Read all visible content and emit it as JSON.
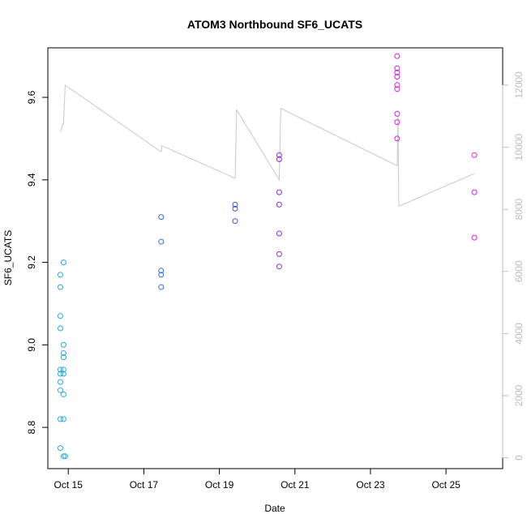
{
  "chart_data": {
    "type": "scatter",
    "title": "ATOM3 Northbound SF6_UCATS",
    "xlabel": "Date",
    "ylabel": "SF6_UCATS",
    "xlim": [
      "2016-10-14 11:00",
      "2016-10-26 12:00"
    ],
    "ylim": [
      8.7,
      9.72
    ],
    "x_ticks": [
      {
        "date": "2016-10-15",
        "label": "Oct 15"
      },
      {
        "date": "2016-10-17",
        "label": "Oct 17"
      },
      {
        "date": "2016-10-19",
        "label": "Oct 19"
      },
      {
        "date": "2016-10-21",
        "label": "Oct 21"
      },
      {
        "date": "2016-10-23",
        "label": "Oct 23"
      },
      {
        "date": "2016-10-25",
        "label": "Oct 25"
      }
    ],
    "y_ticks": [
      8.8,
      9.0,
      9.2,
      9.4,
      9.6
    ],
    "y_tick_labels": [
      "8.8",
      "9.0",
      "9.2",
      "9.4",
      "9.6"
    ],
    "y2_ticks": [
      0,
      2000,
      4000,
      6000,
      8000,
      10000,
      12000
    ],
    "y2_tick_labels": [
      "0",
      "2000",
      "4000",
      "6000",
      "8000",
      "10000",
      "12000"
    ],
    "y2lim": [
      -350,
      13200
    ],
    "grid": false,
    "points": [
      {
        "x": "2016-10-14 19:00",
        "y": 9.14,
        "color": "#1FA9F0"
      },
      {
        "x": "2016-10-14 19:00",
        "y": 9.17,
        "color": "#1FA9F0"
      },
      {
        "x": "2016-10-14 19:00",
        "y": 9.07,
        "color": "#1FA9F0"
      },
      {
        "x": "2016-10-14 19:00",
        "y": 9.04,
        "color": "#1FA9F0"
      },
      {
        "x": "2016-10-14 19:00",
        "y": 8.94,
        "color": "#1FA9F0"
      },
      {
        "x": "2016-10-14 19:00",
        "y": 8.93,
        "color": "#1FA9F0"
      },
      {
        "x": "2016-10-14 19:00",
        "y": 8.91,
        "color": "#1FA9F0"
      },
      {
        "x": "2016-10-14 19:00",
        "y": 8.89,
        "color": "#1FA9F0"
      },
      {
        "x": "2016-10-14 19:00",
        "y": 8.82,
        "color": "#1FA9F0"
      },
      {
        "x": "2016-10-14 19:00",
        "y": 8.75,
        "color": "#1FA9F0"
      },
      {
        "x": "2016-10-14 21:00",
        "y": 9.2,
        "color": "#1FA9F0"
      },
      {
        "x": "2016-10-14 21:00",
        "y": 9.0,
        "color": "#1FA9F0"
      },
      {
        "x": "2016-10-14 21:00",
        "y": 8.98,
        "color": "#1FA9F0"
      },
      {
        "x": "2016-10-14 21:00",
        "y": 8.97,
        "color": "#1FA9F0"
      },
      {
        "x": "2016-10-14 21:00",
        "y": 8.94,
        "color": "#1FA9F0"
      },
      {
        "x": "2016-10-14 21:00",
        "y": 8.93,
        "color": "#1FA9F0"
      },
      {
        "x": "2016-10-14 21:00",
        "y": 8.88,
        "color": "#1FA9F0"
      },
      {
        "x": "2016-10-14 21:00",
        "y": 8.82,
        "color": "#1FA9F0"
      },
      {
        "x": "2016-10-14 21:00",
        "y": 8.73,
        "color": "#1FA9F0"
      },
      {
        "x": "2016-10-14 22:00",
        "y": 8.73,
        "color": "#1FA9F0"
      },
      {
        "x": "2016-10-17 11:00",
        "y": 9.31,
        "color": "#2F6FE6"
      },
      {
        "x": "2016-10-17 11:00",
        "y": 9.25,
        "color": "#2F6FE6"
      },
      {
        "x": "2016-10-17 11:00",
        "y": 9.18,
        "color": "#2F6FE6"
      },
      {
        "x": "2016-10-17 11:00",
        "y": 9.17,
        "color": "#2F6FE6"
      },
      {
        "x": "2016-10-17 11:00",
        "y": 9.14,
        "color": "#2F6FE6"
      },
      {
        "x": "2016-10-19 10:00",
        "y": 9.34,
        "color": "#3B4FE0"
      },
      {
        "x": "2016-10-19 10:00",
        "y": 9.33,
        "color": "#3B4FE0"
      },
      {
        "x": "2016-10-19 10:00",
        "y": 9.3,
        "color": "#3B4FE0"
      },
      {
        "x": "2016-10-20 14:00",
        "y": 9.46,
        "color": "#8A2BE2"
      },
      {
        "x": "2016-10-20 14:00",
        "y": 9.45,
        "color": "#8A2BE2"
      },
      {
        "x": "2016-10-20 14:00",
        "y": 9.37,
        "color": "#8A2BE2"
      },
      {
        "x": "2016-10-20 14:00",
        "y": 9.34,
        "color": "#8A2BE2"
      },
      {
        "x": "2016-10-20 14:00",
        "y": 9.27,
        "color": "#8A2BE2"
      },
      {
        "x": "2016-10-20 14:00",
        "y": 9.22,
        "color": "#8A2BE2"
      },
      {
        "x": "2016-10-20 14:00",
        "y": 9.19,
        "color": "#8A2BE2"
      },
      {
        "x": "2016-10-23 17:00",
        "y": 9.7,
        "color": "#D61FE6"
      },
      {
        "x": "2016-10-23 17:00",
        "y": 9.67,
        "color": "#D61FE6"
      },
      {
        "x": "2016-10-23 17:00",
        "y": 9.66,
        "color": "#D61FE6"
      },
      {
        "x": "2016-10-23 17:00",
        "y": 9.65,
        "color": "#D61FE6"
      },
      {
        "x": "2016-10-23 17:00",
        "y": 9.63,
        "color": "#D61FE6"
      },
      {
        "x": "2016-10-23 17:00",
        "y": 9.62,
        "color": "#D61FE6"
      },
      {
        "x": "2016-10-23 17:00",
        "y": 9.56,
        "color": "#D61FE6"
      },
      {
        "x": "2016-10-23 17:00",
        "y": 9.54,
        "color": "#D61FE6"
      },
      {
        "x": "2016-10-23 17:00",
        "y": 9.5,
        "color": "#D61FE6"
      },
      {
        "x": "2016-10-25 18:00",
        "y": 9.46,
        "color": "#E020D8"
      },
      {
        "x": "2016-10-25 18:00",
        "y": 9.37,
        "color": "#E020D8"
      },
      {
        "x": "2016-10-25 18:00",
        "y": 9.26,
        "color": "#E020D8"
      }
    ],
    "altitude_line": {
      "color": "#C8C8C8",
      "points": [
        {
          "x": "2016-10-14 19:00",
          "y2": 10500
        },
        {
          "x": "2016-10-14 21:00",
          "y2": 10800
        },
        {
          "x": "2016-10-14 22:00",
          "y2": 12000
        },
        {
          "x": "2016-10-17 11:00",
          "y2": 9850
        },
        {
          "x": "2016-10-17 11:30",
          "y2": 10050
        },
        {
          "x": "2016-10-19 10:00",
          "y2": 9000
        },
        {
          "x": "2016-10-19 11:00",
          "y2": 11200
        },
        {
          "x": "2016-10-20 14:00",
          "y2": 8950
        },
        {
          "x": "2016-10-20 15:00",
          "y2": 11250
        },
        {
          "x": "2016-10-23 17:00",
          "y2": 9400
        },
        {
          "x": "2016-10-23 17:30",
          "y2": 11000
        },
        {
          "x": "2016-10-23 18:00",
          "y2": 8100
        },
        {
          "x": "2016-10-25 18:00",
          "y2": 9150
        }
      ]
    }
  }
}
